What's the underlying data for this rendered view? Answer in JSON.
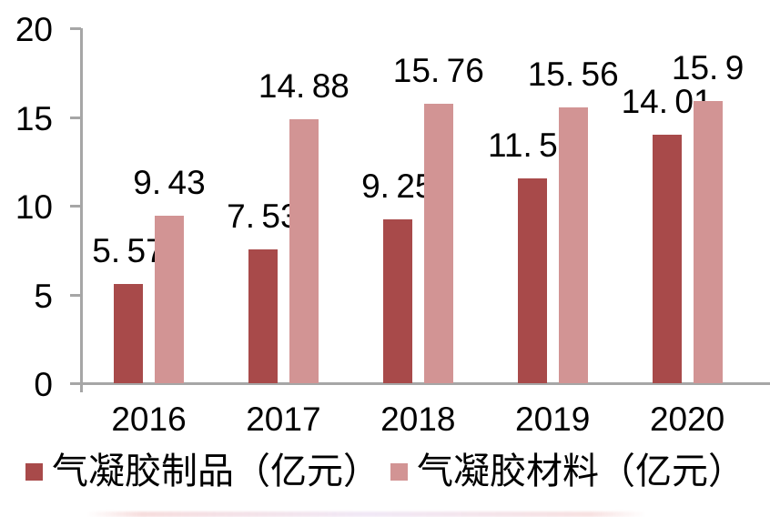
{
  "chart_data": {
    "type": "bar",
    "title": "",
    "xlabel": "",
    "ylabel": "",
    "categories": [
      "2016",
      "2017",
      "2018",
      "2019",
      "2020"
    ],
    "series": [
      {
        "name": "气凝胶制品（亿元）",
        "color": "#A84A4A",
        "values": [
          5.57,
          7.53,
          9.25,
          11.53,
          14.01
        ]
      },
      {
        "name": "气凝胶材料（亿元）",
        "color": "#D29494",
        "values": [
          9.43,
          14.88,
          15.76,
          15.56,
          15.9
        ]
      }
    ],
    "ylim": [
      0,
      20
    ],
    "yticks": [
      0,
      5,
      10,
      15,
      20
    ],
    "grid": false,
    "data_labels": true,
    "legend_position": "bottom",
    "axis_color": "#A6A6A6",
    "label_color": "#000000",
    "background": "#FFFFFF"
  }
}
